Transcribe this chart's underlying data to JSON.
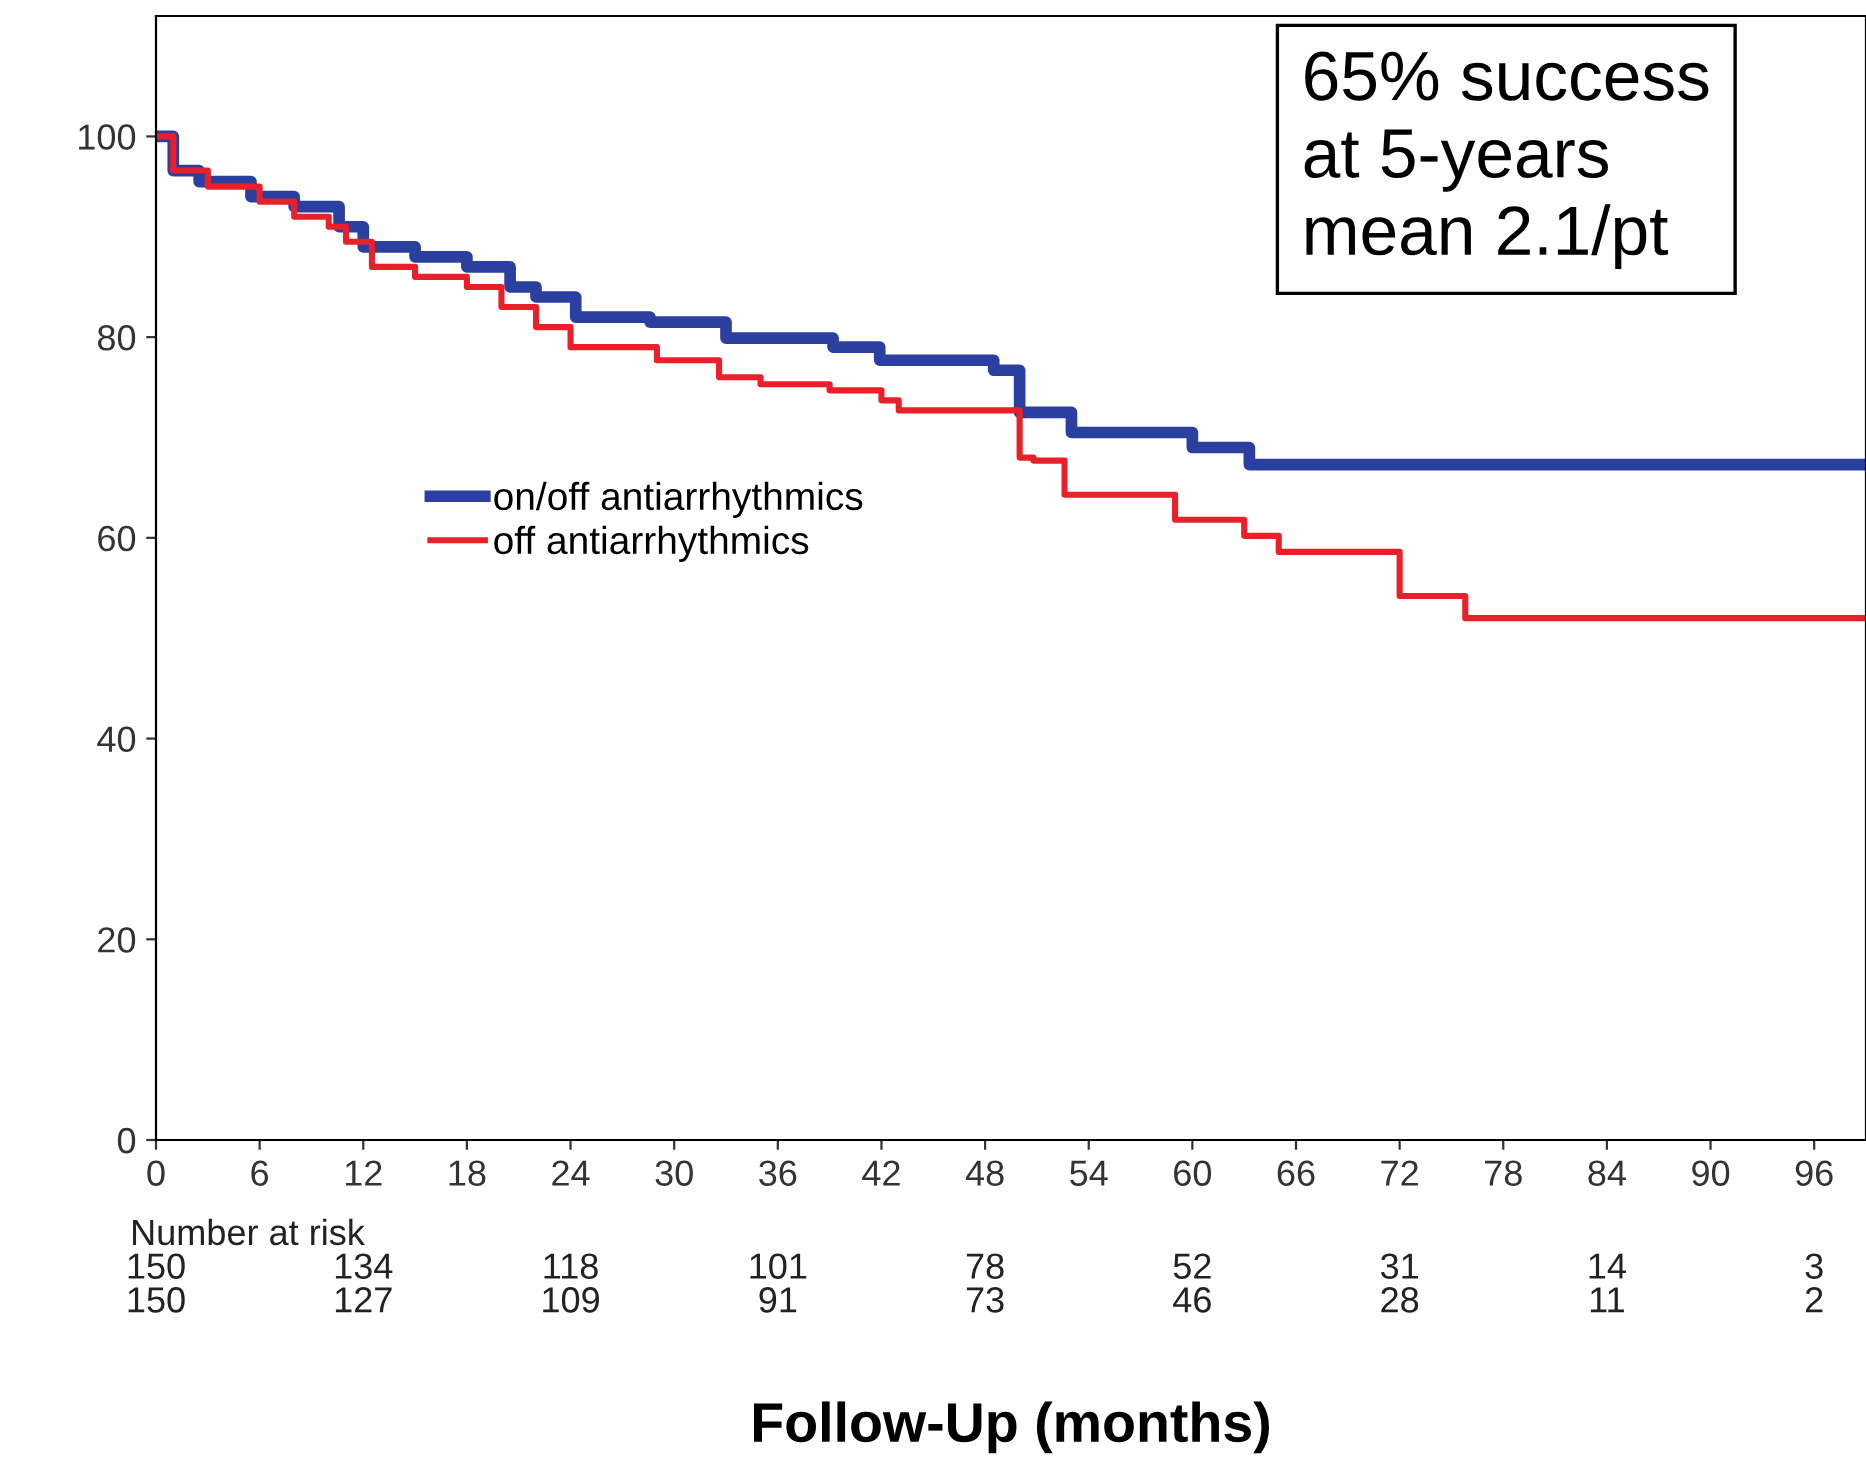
{
  "chart_data": {
    "type": "step",
    "xlabel": "Follow-Up (months)",
    "xlim": [
      0,
      99
    ],
    "ylim": [
      0,
      112
    ],
    "xticks": [
      0,
      6,
      12,
      18,
      24,
      30,
      36,
      42,
      48,
      54,
      60,
      66,
      72,
      78,
      84,
      90,
      96
    ],
    "yticks": [
      0,
      20,
      40,
      60,
      80,
      100
    ],
    "grid": false,
    "legend": "center left",
    "marker": "none",
    "line_style": "solid",
    "series": [
      {
        "name": "on/off antiarrhythmics",
        "color": "#2b3fa0",
        "x": [
          0,
          1,
          2.5,
          5.5,
          8,
          10.6,
          12,
          15,
          18,
          20.5,
          22,
          24.3,
          28.6,
          33,
          39.2,
          41.9,
          48.5,
          50,
          53,
          60,
          63.3,
          99
        ],
        "values": [
          100,
          96.6,
          95.5,
          94,
          93,
          91,
          89,
          88,
          87,
          85,
          84,
          82,
          81.5,
          79.9,
          79,
          77.7,
          76.7,
          72.5,
          70.5,
          69,
          67.3,
          67.3
        ]
      },
      {
        "name": "off antiarrhythmics",
        "color": "#e8202a",
        "x": [
          0,
          1,
          3,
          6,
          8,
          10,
          11,
          12.5,
          15,
          18,
          20,
          22,
          24,
          29,
          32.6,
          35,
          39,
          42,
          43,
          48.5,
          50,
          50.8,
          52.6,
          59,
          63,
          65,
          72,
          75.8,
          99
        ],
        "values": [
          100,
          96.6,
          95,
          93.5,
          92,
          91,
          89.5,
          87,
          86,
          85,
          83,
          81,
          79,
          77.7,
          76,
          75.3,
          74.7,
          73.7,
          72.7,
          72.7,
          68,
          67.7,
          64.3,
          61.8,
          60.2,
          58.6,
          54.2,
          52,
          52
        ]
      }
    ],
    "annotations": [
      "65% success\nat 5-years\nmean 2.1/pt",
      "Number at risk",
      "150",
      "134",
      "118",
      "101",
      "78",
      "52",
      "31",
      "14",
      "3",
      "150",
      "127",
      "109",
      "91",
      "73",
      "46",
      "28",
      "11",
      "2"
    ]
  }
}
